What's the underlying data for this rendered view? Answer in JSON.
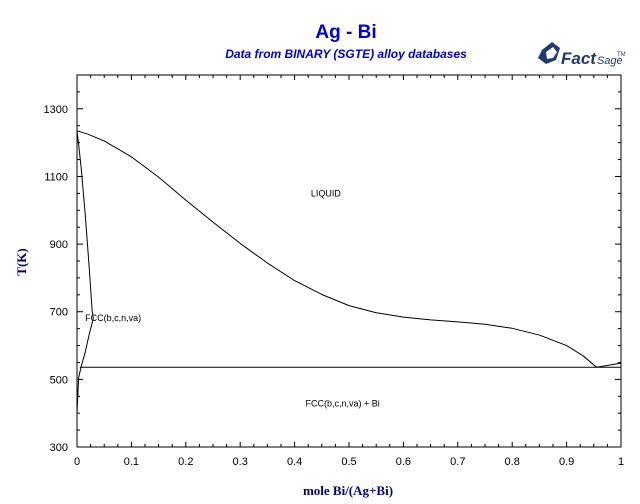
{
  "header": {
    "title": "Ag - Bi",
    "subtitle": "Data from BINARY (SGTE) alloy databases"
  },
  "logo": {
    "icon": "factsage-logo-icon",
    "main": "Fact",
    "sub": "Sage",
    "tm": "TM",
    "color": "#1f3a6e"
  },
  "chart_data": {
    "type": "line",
    "title": "Ag - Bi",
    "subtitle": "Data from BINARY (SGTE) alloy databases",
    "xlabel": "mole Bi/(Ag+Bi)",
    "ylabel": "T(K)",
    "xlim": [
      0,
      1
    ],
    "ylim": [
      300,
      1400
    ],
    "xticks": [
      0,
      0.1,
      0.2,
      0.3,
      0.4,
      0.5,
      0.6,
      0.7,
      0.8,
      0.9,
      1
    ],
    "xtick_labels": [
      "0",
      "0.1",
      "0.2",
      "0.3",
      "0.4",
      "0.5",
      "0.6",
      "0.7",
      "0.8",
      "0.9",
      "1"
    ],
    "yticks": [
      300,
      500,
      700,
      900,
      1100,
      1300
    ],
    "ytick_labels": [
      "300",
      "500",
      "700",
      "900",
      "1100",
      "1300"
    ],
    "grid": false,
    "line_color": "#000000",
    "series": [
      {
        "id": "liquidus",
        "x": [
          0,
          0.02,
          0.05,
          0.1,
          0.15,
          0.2,
          0.25,
          0.3,
          0.35,
          0.4,
          0.45,
          0.5,
          0.55,
          0.6,
          0.65,
          0.7,
          0.75,
          0.8,
          0.85,
          0.9,
          0.93,
          0.955,
          0.97,
          1.0
        ],
        "y": [
          1235,
          1225,
          1205,
          1158,
          1098,
          1030,
          965,
          902,
          844,
          792,
          751,
          718,
          697,
          684,
          676,
          670,
          663,
          651,
          631,
          600,
          570,
          536,
          540,
          548
        ]
      },
      {
        "id": "solidus",
        "x": [
          0,
          0.003,
          0.008,
          0.015,
          0.022,
          0.028,
          0.03
        ],
        "y": [
          1235,
          1195,
          1120,
          990,
          840,
          700,
          680
        ]
      },
      {
        "id": "solvus",
        "x": [
          0.03,
          0.022,
          0.015,
          0.008,
          0.003,
          0
        ],
        "y": [
          680,
          630,
          580,
          540,
          505,
          400
        ]
      },
      {
        "id": "eutectic",
        "x": [
          0.005,
          1.0
        ],
        "y": [
          536,
          536
        ]
      }
    ],
    "annotations": [
      {
        "id": "liquid",
        "text": "LIQUID",
        "x": 0.43,
        "y": 1040
      },
      {
        "id": "fcc",
        "text": "FCC(b,c,n,va)",
        "x": 0.015,
        "y": 672
      },
      {
        "id": "fcc-bi",
        "text": "FCC(b,c,n,va) + Bi",
        "x": 0.42,
        "y": 420
      }
    ]
  }
}
